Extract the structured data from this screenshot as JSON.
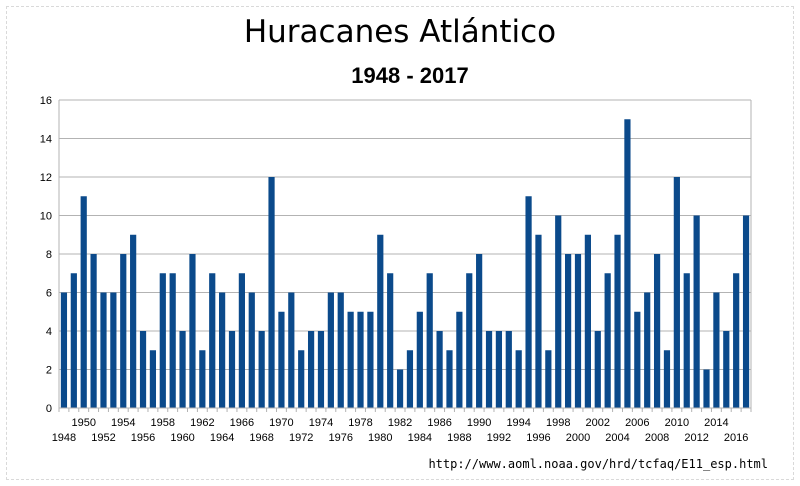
{
  "chart_data": {
    "type": "bar",
    "title": "Huracanes Atlántico",
    "subtitle": "1948 - 2017",
    "xlabel": "",
    "ylabel": "",
    "ylim": [
      0,
      16
    ],
    "yticks": [
      0,
      2,
      4,
      6,
      8,
      10,
      12,
      14,
      16
    ],
    "grid": true,
    "legend": "none",
    "bar_color": "#0b4a8b",
    "categories": [
      1948,
      1949,
      1950,
      1951,
      1952,
      1953,
      1954,
      1955,
      1956,
      1957,
      1958,
      1959,
      1960,
      1961,
      1962,
      1963,
      1964,
      1965,
      1966,
      1967,
      1968,
      1969,
      1970,
      1971,
      1972,
      1973,
      1974,
      1975,
      1976,
      1977,
      1978,
      1979,
      1980,
      1981,
      1982,
      1983,
      1984,
      1985,
      1986,
      1987,
      1988,
      1989,
      1990,
      1991,
      1992,
      1993,
      1994,
      1995,
      1996,
      1997,
      1998,
      1999,
      2000,
      2001,
      2002,
      2003,
      2004,
      2005,
      2006,
      2007,
      2008,
      2009,
      2010,
      2011,
      2012,
      2013,
      2014,
      2015,
      2016,
      2017
    ],
    "values": [
      6,
      7,
      11,
      8,
      6,
      6,
      8,
      9,
      4,
      3,
      7,
      7,
      4,
      8,
      3,
      7,
      6,
      4,
      7,
      6,
      4,
      12,
      5,
      6,
      3,
      4,
      4,
      6,
      6,
      5,
      5,
      5,
      9,
      7,
      2,
      3,
      5,
      7,
      4,
      3,
      5,
      7,
      8,
      4,
      4,
      4,
      3,
      11,
      9,
      3,
      10,
      8,
      8,
      9,
      4,
      7,
      9,
      15,
      5,
      6,
      8,
      3,
      12,
      7,
      10,
      2,
      6,
      4,
      7,
      10
    ],
    "xtick_labels_lower": [
      "1948",
      "1952",
      "1956",
      "1960",
      "1964",
      "1968",
      "1972",
      "1976",
      "1980",
      "1984",
      "1988",
      "1992",
      "1996",
      "2000",
      "2004",
      "2008",
      "2012",
      "2016"
    ],
    "xtick_labels_upper": [
      "1950",
      "1954",
      "1958",
      "1962",
      "1966",
      "1970",
      "1974",
      "1978",
      "1982",
      "1986",
      "1990",
      "1994",
      "1998",
      "2002",
      "2006",
      "2010",
      "2014"
    ]
  },
  "source_url": "http://www.aoml.noaa.gov/hrd/tcfaq/E11_esp.html"
}
